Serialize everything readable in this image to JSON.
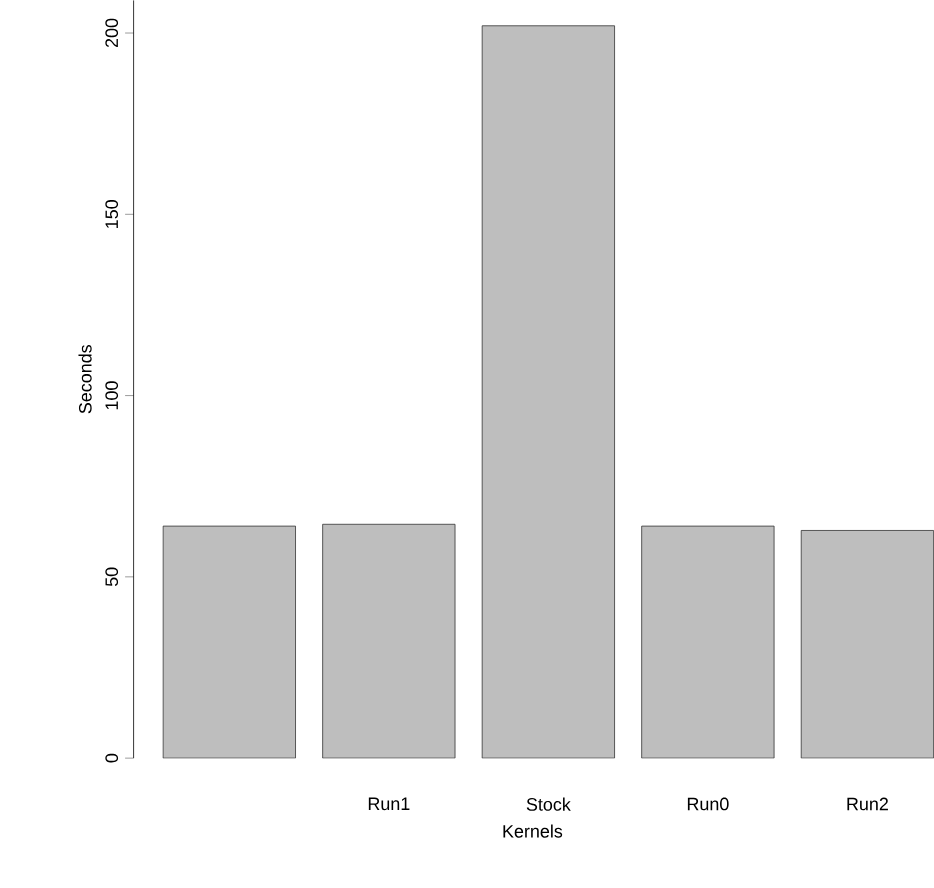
{
  "chart_data": {
    "type": "bar",
    "xlabel": "Kernels",
    "ylabel": "Seconds",
    "categories": [
      null,
      "Run1",
      "Stock",
      "Run0",
      "Run2"
    ],
    "values": [
      64,
      64.5,
      202,
      64,
      62.8
    ],
    "color": "#bebebe",
    "ylim": [
      0,
      209
    ],
    "yticks": [
      0,
      50,
      100,
      150,
      200
    ]
  }
}
